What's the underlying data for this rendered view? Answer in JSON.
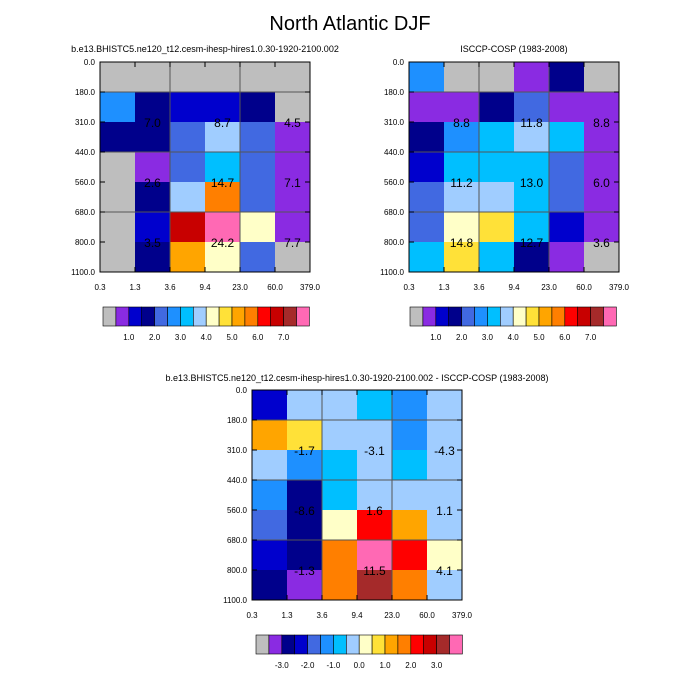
{
  "figure": {
    "title": "North Atlantic DJF"
  },
  "palettes": {
    "abs": [
      "#bebebe",
      "#8a2be2",
      "#0000cd",
      "#00008b",
      "#4169e1",
      "#1e90ff",
      "#00bfff",
      "#a0cdff",
      "#ffffc8",
      "#ffe138",
      "#ffa500",
      "#ff7f00",
      "#ff0000",
      "#c80000",
      "#a52a2a",
      "#ff69b4"
    ],
    "diff": [
      "#bebebe",
      "#8a2be2",
      "#00008b",
      "#0000cd",
      "#4169e1",
      "#1e90ff",
      "#00bfff",
      "#a0cdff",
      "#ffffc8",
      "#ffe138",
      "#ffa500",
      "#ff7f00",
      "#ff0000",
      "#c80000",
      "#a52a2a",
      "#ff69b4"
    ]
  },
  "chart_data": [
    {
      "type": "heatmap",
      "title": "b.e13.BHISTC5.ne120_t12.cesm-ihesp-hires1.0.30-1920-2100.002",
      "x_ticks": [
        "0.3",
        "1.3",
        "3.6",
        "9.4",
        "23.0",
        "60.0",
        "379.0"
      ],
      "y_ticks": [
        "0.0",
        "180.0",
        "310.0",
        "440.0",
        "560.0",
        "680.0",
        "800.0",
        "1100.0"
      ],
      "cells": [
        [
          0,
          0,
          0,
          0,
          0,
          0
        ],
        [
          5,
          3,
          2,
          2,
          3,
          0
        ],
        [
          3,
          3,
          4,
          7,
          4,
          1
        ],
        [
          0,
          1,
          4,
          6,
          4,
          1
        ],
        [
          0,
          3,
          7,
          11,
          4,
          1
        ],
        [
          0,
          2,
          13,
          15,
          8,
          1
        ],
        [
          0,
          3,
          10,
          8,
          4,
          0
        ]
      ],
      "group_labels": [
        {
          "values": [
            "7.0",
            "8.7",
            "4.5"
          ]
        },
        {
          "values": [
            "2.6",
            "14.7",
            "7.1"
          ]
        },
        {
          "values": [
            "3.5",
            "24.2",
            "7.7"
          ]
        }
      ],
      "colorbar": {
        "palette": "abs",
        "labels": [
          "1.0",
          "2.0",
          "3.0",
          "4.0",
          "5.0",
          "6.0",
          "7.0"
        ]
      }
    },
    {
      "type": "heatmap",
      "title": "ISCCP-COSP (1983-2008)",
      "x_ticks": [
        "0.3",
        "1.3",
        "3.6",
        "9.4",
        "23.0",
        "60.0",
        "379.0"
      ],
      "y_ticks": [
        "0.0",
        "180.0",
        "310.0",
        "440.0",
        "560.0",
        "680.0",
        "800.0",
        "1100.0"
      ],
      "cells": [
        [
          5,
          0,
          0,
          1,
          3,
          0
        ],
        [
          1,
          1,
          3,
          4,
          1,
          1
        ],
        [
          3,
          5,
          6,
          7,
          6,
          1
        ],
        [
          2,
          6,
          6,
          6,
          4,
          1
        ],
        [
          4,
          7,
          7,
          6,
          4,
          1
        ],
        [
          4,
          8,
          9,
          6,
          2,
          1
        ],
        [
          6,
          9,
          6,
          3,
          1,
          0
        ]
      ],
      "group_labels": [
        {
          "values": [
            "8.8",
            "11.8",
            "8.8"
          ]
        },
        {
          "values": [
            "11.2",
            "13.0",
            "6.0"
          ]
        },
        {
          "values": [
            "14.8",
            "12.7",
            "3.6"
          ]
        }
      ],
      "colorbar": {
        "palette": "abs",
        "labels": [
          "1.0",
          "2.0",
          "3.0",
          "4.0",
          "5.0",
          "6.0",
          "7.0"
        ]
      }
    },
    {
      "type": "heatmap",
      "title": "b.e13.BHISTC5.ne120_t12.cesm-ihesp-hires1.0.30-1920-2100.002 - ISCCP-COSP (1983-2008)",
      "x_ticks": [
        "0.3",
        "1.3",
        "3.6",
        "9.4",
        "23.0",
        "60.0",
        "379.0"
      ],
      "y_ticks": [
        "0.0",
        "180.0",
        "310.0",
        "440.0",
        "560.0",
        "680.0",
        "800.0",
        "1100.0"
      ],
      "cells": [
        [
          3,
          7,
          7,
          6,
          5,
          7
        ],
        [
          10,
          9,
          7,
          7,
          5,
          7
        ],
        [
          7,
          5,
          6,
          7,
          6,
          7
        ],
        [
          5,
          2,
          6,
          7,
          7,
          7
        ],
        [
          4,
          2,
          8,
          12,
          10,
          7
        ],
        [
          3,
          2,
          11,
          15,
          12,
          8
        ],
        [
          2,
          1,
          11,
          14,
          11,
          7
        ]
      ],
      "group_labels": [
        {
          "values": [
            "-1.7",
            "-3.1",
            "-4.3"
          ]
        },
        {
          "values": [
            "-8.6",
            "1.6",
            "1.1"
          ]
        },
        {
          "values": [
            "-1.3",
            "11.5",
            "4.1"
          ]
        }
      ],
      "colorbar": {
        "palette": "diff",
        "labels": [
          "-3.0",
          "-2.0",
          "-1.0",
          "0.0",
          "1.0",
          "2.0",
          "3.0"
        ]
      }
    }
  ]
}
